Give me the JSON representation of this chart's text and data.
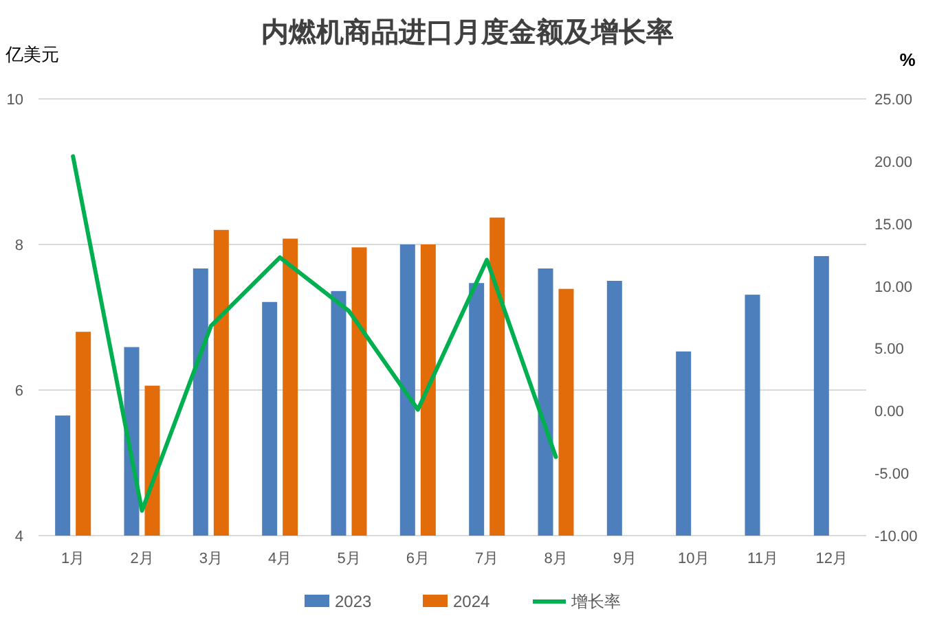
{
  "chart_data": {
    "type": "bar",
    "title": "内燃机商品进口月度金额及增长率",
    "ylabel": "亿美元",
    "y2label": "%",
    "categories": [
      "1月",
      "2月",
      "3月",
      "4月",
      "5月",
      "6月",
      "7月",
      "8月",
      "9月",
      "10月",
      "11月",
      "12月"
    ],
    "series": [
      {
        "name": "2023",
        "color": "#4e7fbd",
        "values": [
          5.65,
          6.59,
          7.67,
          7.21,
          7.36,
          8.0,
          7.47,
          7.67,
          7.5,
          6.53,
          7.31,
          7.84
        ]
      },
      {
        "name": "2024",
        "color": "#e36c0a",
        "values": [
          6.8,
          6.06,
          8.2,
          8.08,
          7.96,
          8.0,
          8.37,
          7.39,
          null,
          null,
          null,
          null
        ]
      },
      {
        "name": "增长率",
        "type": "line",
        "axis": "y2",
        "color": "#00b050",
        "values": [
          20.4,
          -8.0,
          6.8,
          12.3,
          8.0,
          0.1,
          12.1,
          -3.7,
          null,
          null,
          null,
          null
        ]
      }
    ],
    "ylim": [
      4,
      10
    ],
    "yticks": [
      4,
      6,
      8,
      10
    ],
    "y2lim": [
      -10,
      25
    ],
    "y2ticks": [
      {
        "value": -10,
        "label": "-10.00"
      },
      {
        "value": -5,
        "label": "-5.00"
      },
      {
        "value": 0,
        "label": "0.00"
      },
      {
        "value": 5,
        "label": "5.00"
      },
      {
        "value": 10,
        "label": "10.00"
      },
      {
        "value": 15,
        "label": "15.00"
      },
      {
        "value": 20,
        "label": "20.00"
      },
      {
        "value": 25,
        "label": "25.00"
      }
    ],
    "grid": "y",
    "legend": "bottom"
  }
}
